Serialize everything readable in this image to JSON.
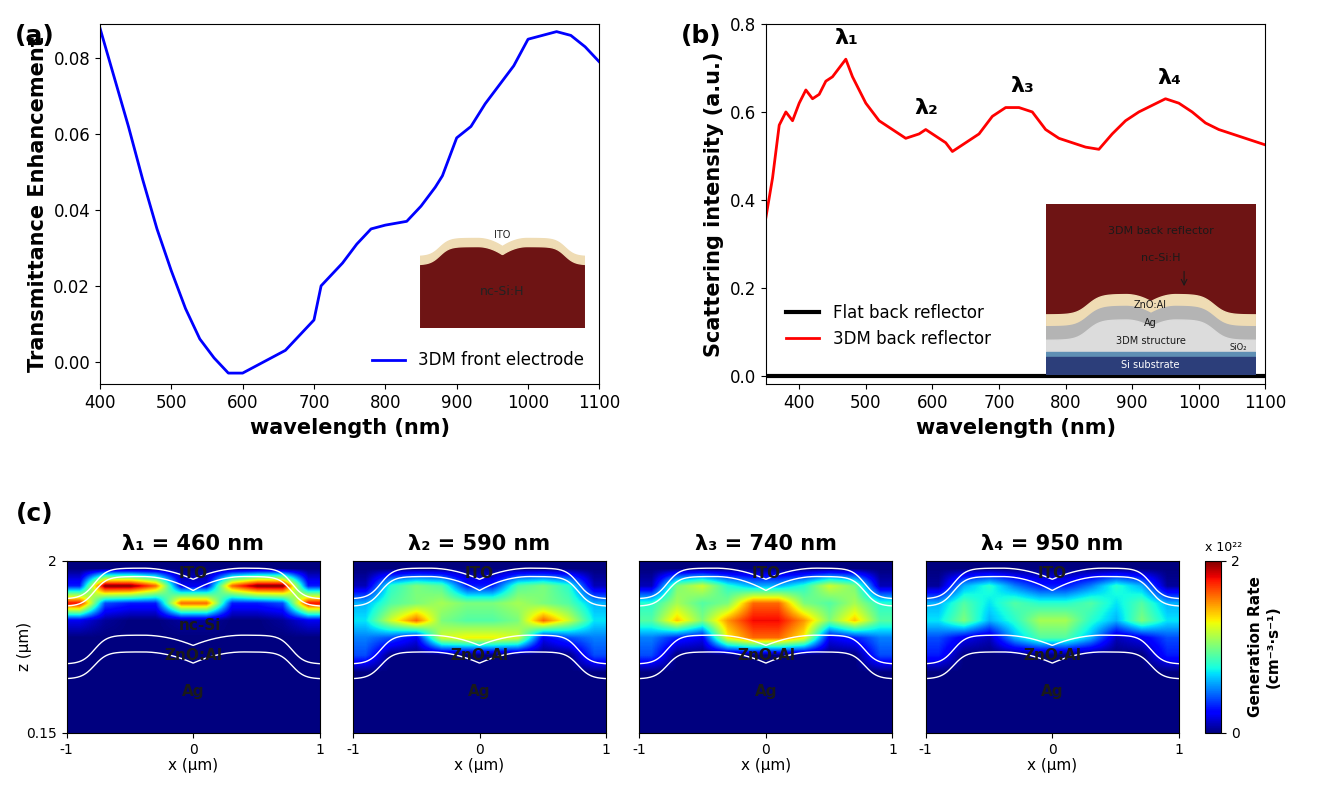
{
  "chart_data": [
    {
      "type": "line",
      "panel_label": "(a)",
      "xlabel": "wavelength (nm)",
      "ylabel": "Transmittance Enhancement",
      "x": [
        400,
        420,
        440,
        460,
        480,
        500,
        520,
        540,
        560,
        580,
        600,
        620,
        640,
        660,
        680,
        700,
        710,
        720,
        740,
        760,
        780,
        800,
        830,
        850,
        870,
        880,
        900,
        920,
        940,
        960,
        980,
        1000,
        1020,
        1040,
        1060,
        1080,
        1100
      ],
      "series": [
        {
          "name": "3DM front electrode",
          "color": "#0000ff",
          "values": [
            0.088,
            0.075,
            0.062,
            0.048,
            0.035,
            0.024,
            0.014,
            0.006,
            0.001,
            -0.003,
            -0.003,
            -0.001,
            0.001,
            0.003,
            0.007,
            0.011,
            0.02,
            0.022,
            0.026,
            0.031,
            0.035,
            0.036,
            0.037,
            0.041,
            0.046,
            0.049,
            0.059,
            0.062,
            0.068,
            0.073,
            0.078,
            0.085,
            0.086,
            0.087,
            0.086,
            0.083,
            0.079
          ]
        }
      ],
      "xlim": [
        400,
        1100
      ],
      "xticks": [
        400,
        500,
        600,
        700,
        800,
        900,
        1000,
        1100
      ],
      "ylim": [
        -0.006,
        0.089
      ],
      "yticks": [
        {
          "value": 0,
          "label": "0.00"
        },
        {
          "value": 0.02,
          "label": "0.02"
        },
        {
          "value": 0.04,
          "label": "0.04"
        },
        {
          "value": 0.06,
          "label": "0.06"
        },
        {
          "value": 0.08,
          "label": "0.08"
        }
      ],
      "legend": "lower right",
      "inset_labels": [
        "ITO",
        "nc-Si:H"
      ]
    },
    {
      "type": "line",
      "panel_label": "(b)",
      "xlabel": "wavelength (nm)",
      "ylabel": "Scattering intensity (a.u.)",
      "x": [
        350,
        360,
        370,
        380,
        390,
        400,
        410,
        420,
        430,
        440,
        450,
        460,
        470,
        480,
        490,
        500,
        520,
        540,
        560,
        580,
        590,
        600,
        620,
        630,
        650,
        670,
        690,
        710,
        730,
        750,
        770,
        790,
        810,
        830,
        850,
        870,
        890,
        910,
        930,
        950,
        970,
        990,
        1010,
        1030,
        1050,
        1070,
        1090,
        1100
      ],
      "series": [
        {
          "name": "Flat back reflector",
          "color": "#000000",
          "values": [
            0,
            0,
            0,
            0,
            0,
            0,
            0,
            0,
            0,
            0,
            0,
            0,
            0,
            0,
            0,
            0,
            0,
            0,
            0,
            0,
            0,
            0,
            0,
            0,
            0,
            0,
            0,
            0,
            0,
            0,
            0,
            0,
            0,
            0,
            0,
            0,
            0,
            0,
            0,
            0,
            0,
            0,
            0,
            0,
            0,
            0,
            0,
            0
          ]
        },
        {
          "name": "3DM back reflector",
          "color": "#ff0000",
          "values": [
            0.36,
            0.45,
            0.57,
            0.6,
            0.58,
            0.62,
            0.65,
            0.63,
            0.64,
            0.67,
            0.68,
            0.7,
            0.72,
            0.68,
            0.65,
            0.62,
            0.58,
            0.56,
            0.54,
            0.55,
            0.56,
            0.55,
            0.53,
            0.51,
            0.53,
            0.55,
            0.59,
            0.61,
            0.61,
            0.6,
            0.56,
            0.54,
            0.53,
            0.52,
            0.515,
            0.55,
            0.58,
            0.6,
            0.615,
            0.63,
            0.62,
            0.6,
            0.575,
            0.56,
            0.55,
            0.54,
            0.53,
            0.525
          ]
        }
      ],
      "xlim": [
        350,
        1100
      ],
      "xticks": [
        400,
        500,
        600,
        700,
        800,
        900,
        1000,
        1100
      ],
      "ylim": [
        -0.02,
        0.8
      ],
      "yticks": [
        0.0,
        0.2,
        0.4,
        0.6,
        0.8
      ],
      "legend": "lower left",
      "annotations": [
        {
          "text": "λ₁",
          "x": 470,
          "y": 0.72
        },
        {
          "text": "λ₂",
          "x": 590,
          "y": 0.56
        },
        {
          "text": "λ₃",
          "x": 735,
          "y": 0.61
        },
        {
          "text": "λ₄",
          "x": 955,
          "y": 0.63
        }
      ],
      "inset_labels": [
        "3DM back reflector",
        "nc-Si:H",
        "ZnO:Al",
        "Ag",
        "3DM structure",
        "SiO₂",
        "Si substrate"
      ]
    },
    {
      "type": "heatmap",
      "panel_label": "(c)",
      "title": "λ₁ = 460 nm",
      "xlabel": "x (μm)",
      "ylabel": "z (μm)",
      "xlim": [
        -1,
        1
      ],
      "xticks": [
        -1,
        0,
        1
      ],
      "ylim": [
        0.15,
        2
      ],
      "yticks": [
        0.15,
        2
      ],
      "tick_labels": true,
      "labels": [
        "ITO",
        "nc-Si",
        "ZnO:Al",
        "Ag"
      ],
      "cells": [
        [
          0,
          0,
          0,
          0,
          0,
          0,
          0,
          0,
          0,
          0
        ],
        [
          0.3,
          2.0,
          2.0,
          1.6,
          0.2,
          0.2,
          1.6,
          2.0,
          2.0,
          0.3
        ],
        [
          1.8,
          0.4,
          0.3,
          0.3,
          1.6,
          1.6,
          0.3,
          0.3,
          0.4,
          1.8
        ],
        [
          0.2,
          0.05,
          0,
          0,
          0.05,
          0.05,
          0,
          0,
          0.05,
          0.2
        ],
        [
          0,
          0,
          0,
          0,
          0,
          0,
          0,
          0,
          0,
          0
        ],
        [
          0,
          0,
          0,
          0,
          0,
          0,
          0,
          0,
          0,
          0
        ],
        [
          0,
          0,
          0,
          0,
          0,
          0,
          0,
          0,
          0,
          0
        ],
        [
          0,
          0,
          0,
          0,
          0,
          0,
          0,
          0,
          0,
          0
        ],
        [
          0,
          0,
          0,
          0,
          0,
          0,
          0,
          0,
          0,
          0
        ],
        [
          0,
          0,
          0,
          0,
          0,
          0,
          0,
          0,
          0,
          0
        ]
      ]
    },
    {
      "type": "heatmap",
      "title": "λ₂ = 590 nm",
      "xlabel": "x (μm)",
      "xlim": [
        -1,
        1
      ],
      "xticks": [
        -1,
        0,
        1
      ],
      "ylim": [
        0.15,
        2
      ],
      "tick_labels": "x",
      "labels": [
        "ITO",
        "ZnO:Al",
        "Ag"
      ],
      "cells": [
        [
          0,
          0,
          0,
          0,
          0,
          0,
          0,
          0,
          0,
          0
        ],
        [
          0.1,
          0.8,
          1.0,
          0.9,
          0.3,
          0.3,
          0.9,
          1.0,
          0.8,
          0.1
        ],
        [
          0.6,
          0.9,
          1.0,
          1.1,
          1.0,
          1.0,
          1.1,
          1.0,
          0.9,
          0.6
        ],
        [
          0.7,
          1.2,
          1.6,
          1.0,
          0.9,
          0.9,
          1.0,
          1.6,
          1.2,
          0.7
        ],
        [
          0.5,
          0.4,
          0.2,
          1.2,
          1.3,
          1.3,
          1.2,
          0.2,
          0.4,
          0.5
        ],
        [
          0.4,
          0,
          0,
          0,
          0,
          0,
          0,
          0,
          0,
          0.4
        ],
        [
          0,
          0,
          0,
          0,
          0,
          0,
          0,
          0,
          0,
          0
        ],
        [
          0,
          0,
          0,
          0,
          0,
          0,
          0,
          0,
          0,
          0
        ],
        [
          0,
          0,
          0,
          0,
          0,
          0,
          0,
          0,
          0,
          0
        ],
        [
          0,
          0,
          0,
          0,
          0,
          0,
          0,
          0,
          0,
          0
        ]
      ]
    },
    {
      "type": "heatmap",
      "title": "λ₃ = 740 nm",
      "xlabel": "x (μm)",
      "xlim": [
        -1,
        1
      ],
      "xticks": [
        -1,
        0,
        1
      ],
      "ylim": [
        0.15,
        2
      ],
      "tick_labels": "x",
      "labels": [
        "ITO",
        "ZnO:Al",
        "Ag"
      ],
      "cells": [
        [
          0,
          0,
          0,
          0,
          0,
          0,
          0,
          0,
          0,
          0
        ],
        [
          0.1,
          1.0,
          1.2,
          0.8,
          0.6,
          0.6,
          0.8,
          1.2,
          1.0,
          0.1
        ],
        [
          0.8,
          1.1,
          0.9,
          1.0,
          1.6,
          1.6,
          1.0,
          0.9,
          1.1,
          0.8
        ],
        [
          0.9,
          1.4,
          1.0,
          1.5,
          1.8,
          1.8,
          1.5,
          1.0,
          1.4,
          0.9
        ],
        [
          0.5,
          0.3,
          0.2,
          1.3,
          1.6,
          1.6,
          1.3,
          0.2,
          0.3,
          0.5
        ],
        [
          0.4,
          0,
          0,
          0,
          0,
          0,
          0,
          0,
          0,
          0.4
        ],
        [
          0,
          0,
          0,
          0,
          0,
          0,
          0,
          0,
          0,
          0
        ],
        [
          0,
          0,
          0,
          0,
          0,
          0,
          0,
          0,
          0,
          0
        ],
        [
          0,
          0,
          0,
          0,
          0,
          0,
          0,
          0,
          0,
          0
        ],
        [
          0,
          0,
          0,
          0,
          0,
          0,
          0,
          0,
          0,
          0
        ]
      ]
    },
    {
      "type": "heatmap",
      "title": "λ₄ = 950 nm",
      "xlabel": "x (μm)",
      "xlim": [
        -1,
        1
      ],
      "xticks": [
        -1,
        0,
        1
      ],
      "ylim": [
        0.15,
        2
      ],
      "tick_labels": "x",
      "labels": [
        "ITO",
        "ZnO:Al",
        "Ag"
      ],
      "cells": [
        [
          0,
          0,
          0,
          0,
          0,
          0,
          0,
          0,
          0,
          0
        ],
        [
          0.05,
          0.6,
          0.8,
          0.5,
          0.3,
          0.3,
          0.5,
          0.8,
          0.6,
          0.05
        ],
        [
          0.6,
          0.9,
          0.7,
          0.9,
          0.8,
          0.8,
          0.9,
          0.7,
          0.9,
          0.6
        ],
        [
          0.7,
          1.0,
          0.6,
          0.8,
          1.1,
          1.1,
          0.8,
          0.6,
          1.0,
          0.7
        ],
        [
          0.4,
          0.2,
          0.1,
          0.6,
          0.9,
          0.9,
          0.6,
          0.1,
          0.2,
          0.4
        ],
        [
          0.3,
          0,
          0,
          0,
          0,
          0,
          0,
          0,
          0,
          0.3
        ],
        [
          0,
          0,
          0,
          0,
          0,
          0,
          0,
          0,
          0,
          0
        ],
        [
          0,
          0,
          0,
          0,
          0,
          0,
          0,
          0,
          0,
          0
        ],
        [
          0,
          0,
          0,
          0,
          0,
          0,
          0,
          0,
          0,
          0
        ],
        [
          0,
          0,
          0,
          0,
          0,
          0,
          0,
          0,
          0,
          0
        ]
      ],
      "colorbar": {
        "label": "Generation Rate\n(cm⁻³·s⁻¹)",
        "multiplier": "x 10²²",
        "range": [
          0,
          2
        ],
        "ticks": [
          0,
          2
        ]
      }
    }
  ]
}
